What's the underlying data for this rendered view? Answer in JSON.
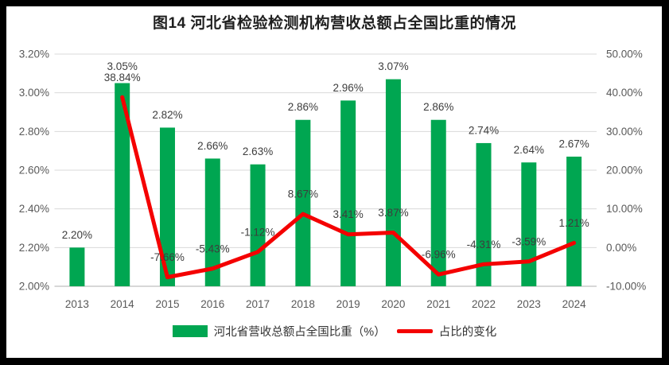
{
  "title": "图14 河北省检验检测机构营收总额占全国比重的情况",
  "colors": {
    "bar": "#00A651",
    "line": "#F40000",
    "grid": "#D9D9D9",
    "axis_line": "#BFBFBF",
    "tick_text": "#595959",
    "label_text": "#3d3d3d",
    "frame": "#000000",
    "background": "#FFFFFF"
  },
  "legend": {
    "items": [
      {
        "label": "河北省营收总额占全国比重（%）",
        "type": "bar"
      },
      {
        "label": "占比的变化",
        "type": "line"
      }
    ]
  },
  "chart_data": {
    "type": "bar+line",
    "title": "图14 河北省检验检测机构营收总额占全国比重的情况",
    "categories": [
      "2013",
      "2014",
      "2015",
      "2016",
      "2017",
      "2018",
      "2019",
      "2020",
      "2021",
      "2022",
      "2023",
      "2024"
    ],
    "series": [
      {
        "name": "河北省营收总额占全国比重（%）",
        "type": "bar",
        "axis": "left",
        "start_index": 0,
        "values": [
          2.2,
          3.05,
          2.82,
          2.66,
          2.63,
          2.86,
          2.96,
          3.07,
          2.86,
          2.74,
          2.64,
          2.67
        ],
        "labels": [
          "2.20%",
          "3.05%",
          "2.82%",
          "2.66%",
          "2.63%",
          "2.86%",
          "2.96%",
          "3.07%",
          "2.86%",
          "2.74%",
          "2.64%",
          "2.67%"
        ]
      },
      {
        "name": "占比的变化",
        "type": "line",
        "axis": "right",
        "start_index": 1,
        "values": [
          38.84,
          -7.66,
          -5.43,
          -1.12,
          8.67,
          3.41,
          3.87,
          -6.96,
          -4.31,
          -3.59,
          1.21
        ],
        "labels": [
          "38.84%",
          "-7.66%",
          "-5.43%",
          "-1.12%",
          "8.67%",
          "3.41%",
          "3.87%",
          "-6.96%",
          "-4.31%",
          "-3.59%",
          "1.21%"
        ]
      }
    ],
    "left_axis": {
      "min": 2.0,
      "max": 3.2,
      "step": 0.2,
      "tick_values": [
        3.2,
        3.0,
        2.8,
        2.6,
        2.4,
        2.2,
        2.0
      ],
      "tick_labels": [
        "3.20%",
        "3.00%",
        "2.80%",
        "2.60%",
        "2.40%",
        "2.20%",
        "2.00%"
      ]
    },
    "right_axis": {
      "min": -10,
      "max": 50,
      "step": 10,
      "tick_values": [
        50,
        40,
        30,
        20,
        10,
        0,
        -10
      ],
      "tick_labels": [
        "50.00%",
        "40.00%",
        "30.00%",
        "20.00%",
        "10.00%",
        "0.00%",
        "-10.00%"
      ]
    },
    "grid": "horizontal",
    "legend_position": "bottom"
  }
}
